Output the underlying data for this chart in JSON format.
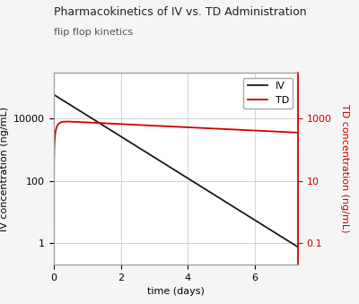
{
  "title": "Pharmacokinetics of IV vs. TD Administration",
  "subtitle": "flip flop kinetics",
  "xlabel": "time (days)",
  "ylabel_left": "IV concentration (ng/mL)",
  "ylabel_right": "TD concentration (ng/mL)",
  "legend_labels": [
    "IV",
    "TD"
  ],
  "iv_color": "#1a1a1a",
  "td_color": "#cc0000",
  "background_color": "#f5f5f5",
  "plot_bg_color": "#ffffff",
  "grid_color": "#cccccc",
  "iv_C0": 60000,
  "iv_ke": 1.55,
  "td_ka": 12.0,
  "td_ke": 0.12,
  "td_scale": 850,
  "x_max": 7.3,
  "iv_ylim": [
    0.2,
    300000
  ],
  "td_ylim": [
    0.02,
    30000
  ],
  "iv_yticks": [
    1,
    100,
    10000
  ],
  "td_yticks": [
    0.1,
    10,
    1000
  ],
  "iv_yticklabels": [
    "1",
    "100",
    "10000"
  ],
  "td_yticklabels": [
    "0.1",
    "10",
    "1000"
  ],
  "x_ticks": [
    0,
    2,
    4,
    6
  ],
  "title_fontsize": 9,
  "subtitle_fontsize": 8,
  "axis_fontsize": 8,
  "tick_fontsize": 8,
  "legend_fontsize": 8
}
